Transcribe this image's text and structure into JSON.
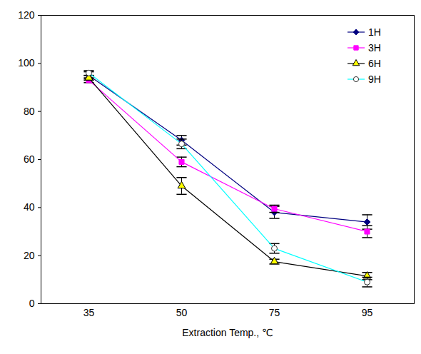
{
  "chart_data": {
    "type": "line",
    "x_label": "Extraction Temp., ℃",
    "categories": [
      35,
      50,
      75,
      95
    ],
    "series": [
      {
        "name": "1H",
        "color": "#000080",
        "marker": "diamond",
        "values": [
          95,
          68,
          38,
          34
        ],
        "errors": [
          1.5,
          2,
          2.5,
          3
        ]
      },
      {
        "name": "3H",
        "color": "#FF00FF",
        "marker": "square",
        "values": [
          93,
          59,
          39.5,
          30
        ],
        "errors": [
          1,
          2,
          1.5,
          2.5
        ]
      },
      {
        "name": "6H",
        "color": "#000000",
        "marker": "triangle",
        "values": [
          94,
          49,
          17.5,
          11.5
        ],
        "errors": [
          1,
          3.5,
          1,
          1.5
        ]
      },
      {
        "name": "9H",
        "color": "#00FFFF",
        "marker": "circle",
        "values": [
          96,
          66.5,
          23,
          9
        ],
        "errors": [
          1,
          2,
          2,
          2
        ]
      }
    ],
    "ylim": [
      0,
      120
    ],
    "yticks": [
      0,
      20,
      40,
      60,
      80,
      100,
      120
    ],
    "grid": false,
    "legend": "top-right"
  }
}
